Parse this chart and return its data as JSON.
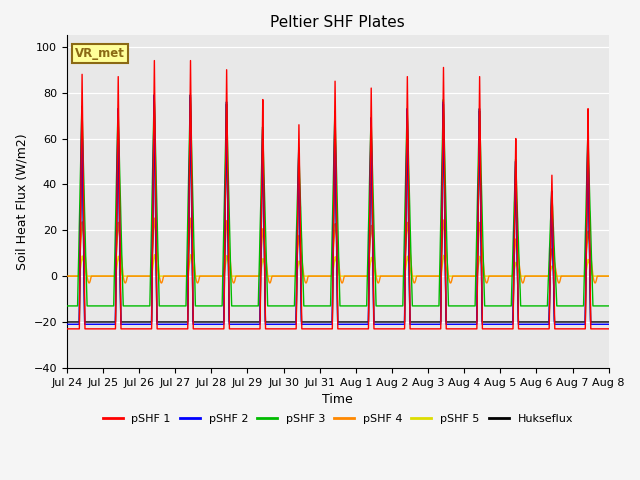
{
  "title": "Peltier SHF Plates",
  "xlabel": "Time",
  "ylabel": "Soil Heat Flux (W/m2)",
  "ylim": [
    -40,
    105
  ],
  "yticks": [
    -40,
    -20,
    0,
    20,
    40,
    60,
    80,
    100
  ],
  "background_color": "#f5f5f5",
  "plot_bg_color": "#e8e8e8",
  "annotation_text": "VR_met",
  "annotation_box_color": "#ffff99",
  "annotation_border_color": "#8B6914",
  "series": [
    {
      "label": "pSHF 1",
      "color": "#ff0000"
    },
    {
      "label": "pSHF 2",
      "color": "#0000ff"
    },
    {
      "label": "pSHF 3",
      "color": "#00bb00"
    },
    {
      "label": "pSHF 4",
      "color": "#ff8800"
    },
    {
      "label": "pSHF 5",
      "color": "#dddd00"
    },
    {
      "label": "Hukseflux",
      "color": "#000000"
    }
  ],
  "x_tick_labels": [
    "Jul 24",
    "Jul 25",
    "Jul 26",
    "Jul 27",
    "Jul 28",
    "Jul 29",
    "Jul 30",
    "Jul 31",
    "Aug 1",
    "Aug 2",
    "Aug 3",
    "Aug 4",
    "Aug 5",
    "Aug 6",
    "Aug 7",
    "Aug 8"
  ],
  "peak_heights": [
    89,
    88,
    95,
    95,
    91,
    78,
    67,
    86,
    83,
    88,
    92,
    88,
    61,
    45,
    74
  ],
  "n_days": 15,
  "points_per_day": 288
}
